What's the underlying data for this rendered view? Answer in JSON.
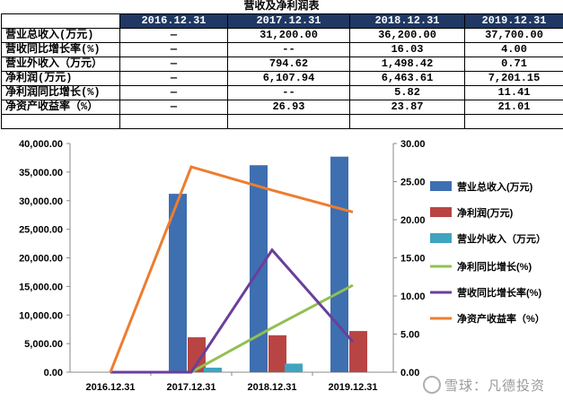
{
  "title": "营收及净利润表",
  "table": {
    "headers": [
      "",
      "2016.12.31",
      "2017.12.31",
      "2018.12.31",
      "2019.12.31"
    ],
    "rows": [
      {
        "label": "营业总收入(万元)",
        "values": [
          "—",
          "31,200.00",
          "36,200.00",
          "37,700.00"
        ]
      },
      {
        "label": "营收同比增长率(%)",
        "values": [
          "—",
          "--",
          "16.03",
          "4.00"
        ]
      },
      {
        "label": "营业外收入（万元）",
        "values": [
          "—",
          "794.62",
          "1,498.42",
          "0.71"
        ]
      },
      {
        "label": "净利润(万元)",
        "values": [
          "—",
          "6,107.94",
          "6,463.61",
          "7,201.15"
        ]
      },
      {
        "label": "净利润同比增长(%)",
        "values": [
          "—",
          "--",
          "5.82",
          "11.41"
        ]
      },
      {
        "label": "净资产收益率（%）",
        "values": [
          "—",
          "26.93",
          "23.87",
          "21.01"
        ]
      },
      {
        "label": "",
        "values": [
          "",
          "",
          "",
          ""
        ]
      }
    ]
  },
  "chart_data": {
    "type": "bar",
    "categories": [
      "2016.12.31",
      "2017.12.31",
      "2018.12.31",
      "2019.12.31"
    ],
    "left_axis": {
      "min": 0,
      "max": 40000,
      "ticks": [
        "0.00",
        "5,000.00",
        "10,000.00",
        "15,000.00",
        "20,000.00",
        "25,000.00",
        "30,000.00",
        "35,000.00",
        "40,000.00"
      ]
    },
    "right_axis": {
      "min": 0,
      "max": 30,
      "ticks": [
        "0.00",
        "5.00",
        "10.00",
        "15.00",
        "20.00",
        "25.00",
        "30.00"
      ]
    },
    "bar_series": [
      {
        "name": "营业总收入(万元)",
        "color": "#3e6fb0",
        "values": [
          0,
          31200,
          36200,
          37700
        ]
      },
      {
        "name": "净利润(万元)",
        "color": "#b84543",
        "values": [
          0,
          6107.94,
          6463.61,
          7201.15
        ]
      },
      {
        "name": "营业外收入（万元）",
        "color": "#3fa4c0",
        "values": [
          0,
          794.62,
          1498.42,
          0.71
        ]
      }
    ],
    "line_series": [
      {
        "name": "净利同比增长(%)",
        "color": "#92c050",
        "values": [
          0,
          0,
          5.82,
          11.41
        ]
      },
      {
        "name": "营收同比增长率(%)",
        "color": "#6a3f9a",
        "values": [
          0,
          0,
          16.03,
          4.0
        ]
      },
      {
        "name": "净资产收益率（%）",
        "color": "#ed7d31",
        "values": [
          0,
          26.93,
          23.87,
          21.01
        ]
      }
    ],
    "legend_placement": "right"
  },
  "watermark": "雪球：凡德投资"
}
